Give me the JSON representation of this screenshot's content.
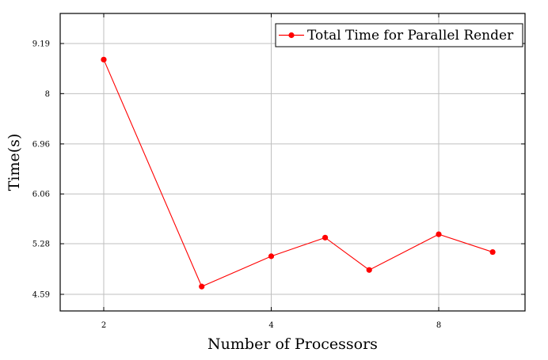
{
  "chart_data": {
    "type": "line",
    "xlabel": "Number of Processors",
    "ylabel": "Time(s)",
    "x_scale": "log2",
    "x_ticks": [
      2,
      4,
      8
    ],
    "y_scale": "log",
    "y_ticks": [
      4.59,
      5.28,
      6.06,
      6.96,
      8,
      9.19
    ],
    "grid": true,
    "legend_position": "top-right",
    "series": [
      {
        "name": "Total Time for Parallel Render",
        "color": "#ff0000",
        "x": [
          2,
          3,
          4,
          5,
          6,
          8,
          10
        ],
        "y": [
          8.79,
          4.69,
          5.1,
          5.37,
          4.91,
          5.42,
          5.16
        ]
      }
    ]
  }
}
